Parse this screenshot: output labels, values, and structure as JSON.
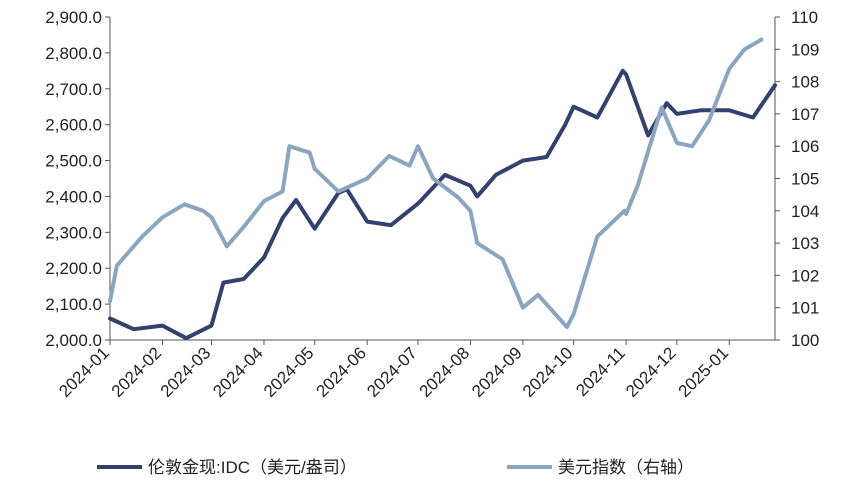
{
  "chart_data": {
    "type": "line",
    "title": "",
    "xlabel": "",
    "ylabel": "",
    "y2label": "",
    "x_ticks": [
      "2024-01",
      "2024-02",
      "2024-03",
      "2024-04",
      "2024-05",
      "2024-06",
      "2024-07",
      "2024-08",
      "2024-09",
      "2024-10",
      "2024-11",
      "2024-12",
      "2025-01"
    ],
    "ylim": [
      2000,
      2900
    ],
    "y_ticks": [
      "2,000.0",
      "2,100.0",
      "2,200.0",
      "2,300.0",
      "2,400.0",
      "2,500.0",
      "2,600.0",
      "2,700.0",
      "2,800.0",
      "2,900.0"
    ],
    "y2lim": [
      100,
      110
    ],
    "y2_ticks": [
      "100",
      "101",
      "102",
      "103",
      "104",
      "105",
      "106",
      "107",
      "108",
      "109",
      "110"
    ],
    "grid": false,
    "legend_position": "bottom",
    "series": [
      {
        "name": "伦敦金现:IDC（美元/盎司）",
        "axis": "left",
        "color": "#33416e",
        "x": [
          "2024-01",
          "2024-01-15",
          "2024-02",
          "2024-02-15",
          "2024-03",
          "2024-03-08",
          "2024-03-20",
          "2024-04",
          "2024-04-12",
          "2024-04-20",
          "2024-05",
          "2024-05-15",
          "2024-05-20",
          "2024-06",
          "2024-06-15",
          "2024-07",
          "2024-07-17",
          "2024-08",
          "2024-08-05",
          "2024-08-16",
          "2024-09",
          "2024-09-15",
          "2024-09-26",
          "2024-10",
          "2024-10-15",
          "2024-10-30",
          "2024-11",
          "2024-11-14",
          "2024-11-25",
          "2024-12",
          "2024-12-15",
          "2025-01",
          "2025-01-15",
          "2025-01-28"
        ],
        "values": [
          2060,
          2030,
          2040,
          2005,
          2040,
          2160,
          2170,
          2230,
          2340,
          2390,
          2310,
          2410,
          2420,
          2330,
          2320,
          2380,
          2460,
          2430,
          2400,
          2460,
          2500,
          2510,
          2600,
          2650,
          2620,
          2750,
          2740,
          2570,
          2660,
          2630,
          2640,
          2640,
          2620,
          2710
        ]
      },
      {
        "name": "美元指数（右轴）",
        "axis": "right",
        "color": "#8ca5bf",
        "x": [
          "2024-01",
          "2024-01-05",
          "2024-01-20",
          "2024-02",
          "2024-02-14",
          "2024-02-25",
          "2024-03",
          "2024-03-10",
          "2024-03-20",
          "2024-04",
          "2024-04-12",
          "2024-04-16",
          "2024-04-28",
          "2024-05",
          "2024-05-15",
          "2024-06",
          "2024-06-14",
          "2024-06-26",
          "2024-07",
          "2024-07-10",
          "2024-07-25",
          "2024-08",
          "2024-08-05",
          "2024-08-20",
          "2024-09",
          "2024-09-10",
          "2024-09-27",
          "2024-10",
          "2024-10-15",
          "2024-10-31",
          "2024-11",
          "2024-11-08",
          "2024-11-22",
          "2024-12",
          "2024-12-10",
          "2024-12-20",
          "2025-01",
          "2025-01-10",
          "2025-01-20"
        ],
        "values": [
          101.2,
          102.3,
          103.2,
          103.8,
          104.2,
          104.0,
          103.8,
          102.9,
          103.5,
          104.3,
          104.6,
          106.0,
          105.8,
          105.3,
          104.6,
          105.0,
          105.7,
          105.4,
          106.0,
          105.0,
          104.4,
          104.0,
          103.0,
          102.5,
          101.0,
          101.4,
          100.4,
          100.8,
          103.2,
          104.0,
          103.9,
          104.8,
          107.2,
          106.1,
          106.0,
          106.8,
          108.4,
          109.0,
          109.3
        ]
      }
    ]
  }
}
